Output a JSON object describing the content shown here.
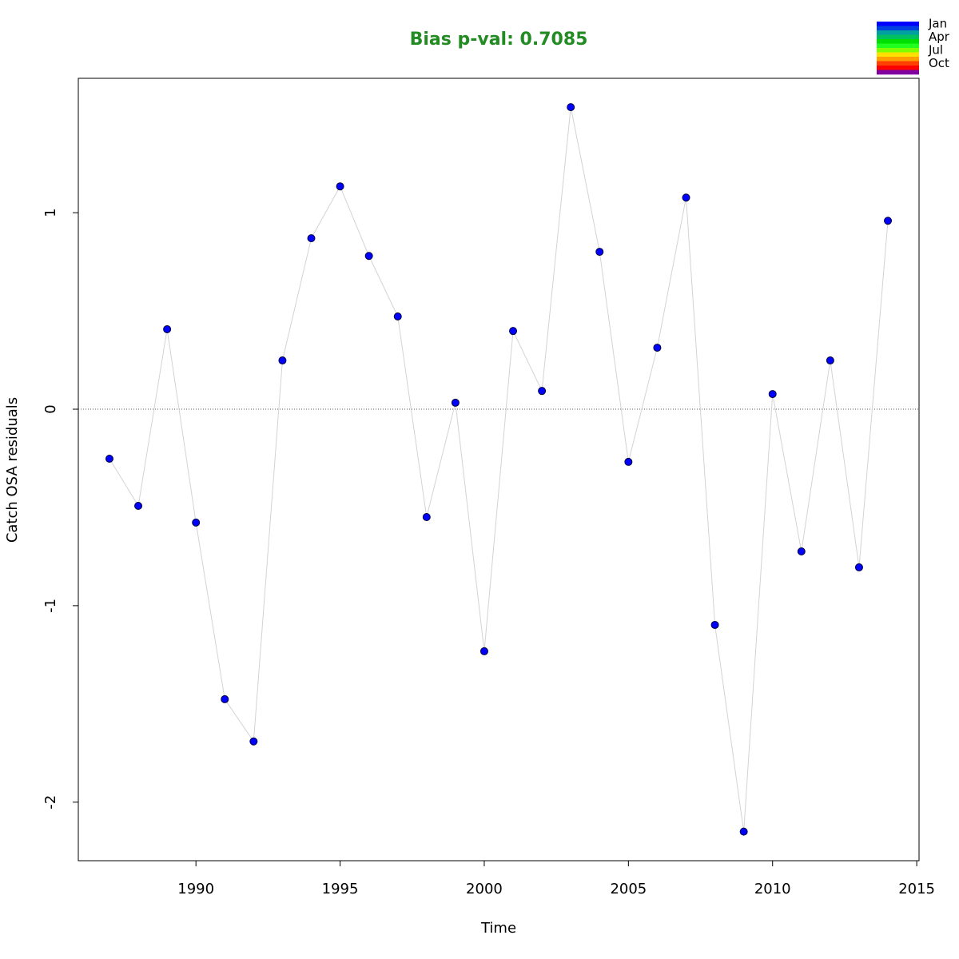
{
  "chart_data": {
    "type": "line",
    "title": "Bias p-val: 0.7085",
    "title_color": "#228b22",
    "x_label": "Time",
    "y_label": "Catch OSA residuals",
    "x": [
      1987,
      1988,
      1989,
      1990,
      1991,
      1992,
      1993,
      1994,
      1995,
      1996,
      1997,
      1998,
      1999,
      2000,
      2001,
      2002,
      2003,
      2004,
      2005,
      2006,
      2007,
      2008,
      2009,
      2010,
      2011,
      2012,
      2013,
      2014
    ],
    "values": [
      -0.252,
      -0.492,
      0.407,
      -0.577,
      -1.476,
      -1.691,
      0.248,
      0.87,
      1.134,
      0.78,
      0.472,
      -0.549,
      0.033,
      -1.232,
      0.398,
      0.093,
      1.537,
      0.801,
      -0.268,
      0.313,
      1.077,
      -1.098,
      -2.15,
      0.077,
      -0.724,
      0.248,
      -0.805,
      0.959
    ],
    "color": "#0000ff",
    "line_color": "#d3d3d3",
    "hline": 0,
    "xlim": [
      1985.92,
      2015.08
    ],
    "ylim": [
      -2.298,
      1.684
    ],
    "xticks": [
      1990,
      1995,
      2000,
      2005,
      2010,
      2015
    ],
    "yticks": [
      -2,
      -1,
      0,
      1
    ],
    "legend": {
      "labels": [
        "Jan",
        "Apr",
        "Jul",
        "Oct"
      ],
      "colors": [
        "#0000ff",
        "#0040e0",
        "#00a0a0",
        "#00c060",
        "#00e000",
        "#20ff20",
        "#80ff00",
        "#ffe000",
        "#ffa000",
        "#ff4000",
        "#ff0000",
        "#8000a0"
      ]
    }
  }
}
